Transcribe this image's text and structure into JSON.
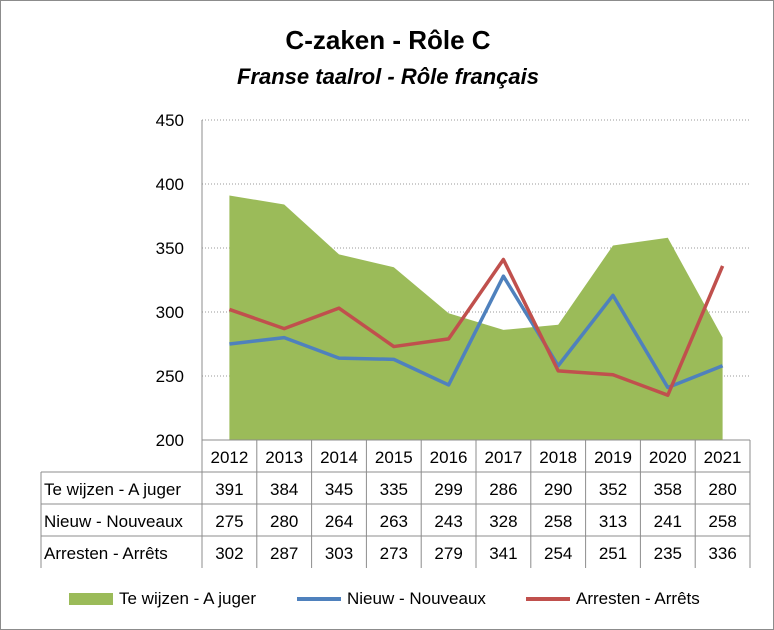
{
  "chart_data": {
    "type": "area",
    "title": "C-zaken - Rôle C",
    "subtitle": "Franse taalrol - Rôle français",
    "categories": [
      "2012",
      "2013",
      "2014",
      "2015",
      "2016",
      "2017",
      "2018",
      "2019",
      "2020",
      "2021"
    ],
    "ylim": [
      200,
      450
    ],
    "yticks": [
      200,
      250,
      300,
      350,
      400,
      450
    ],
    "grid": true,
    "legend_position": "bottom",
    "data_table": true,
    "series": [
      {
        "name": "Te wijzen - A juger",
        "type": "area",
        "color": "#9bbb59",
        "values": [
          391,
          384,
          345,
          335,
          299,
          286,
          290,
          352,
          358,
          280
        ]
      },
      {
        "name": "Nieuw - Nouveaux",
        "type": "line",
        "color": "#4f81bd",
        "values": [
          275,
          280,
          264,
          263,
          243,
          328,
          258,
          313,
          241,
          258
        ]
      },
      {
        "name": "Arresten - Arrêts",
        "type": "line",
        "color": "#c0504d",
        "values": [
          302,
          287,
          303,
          273,
          279,
          341,
          254,
          251,
          235,
          336
        ]
      }
    ]
  }
}
